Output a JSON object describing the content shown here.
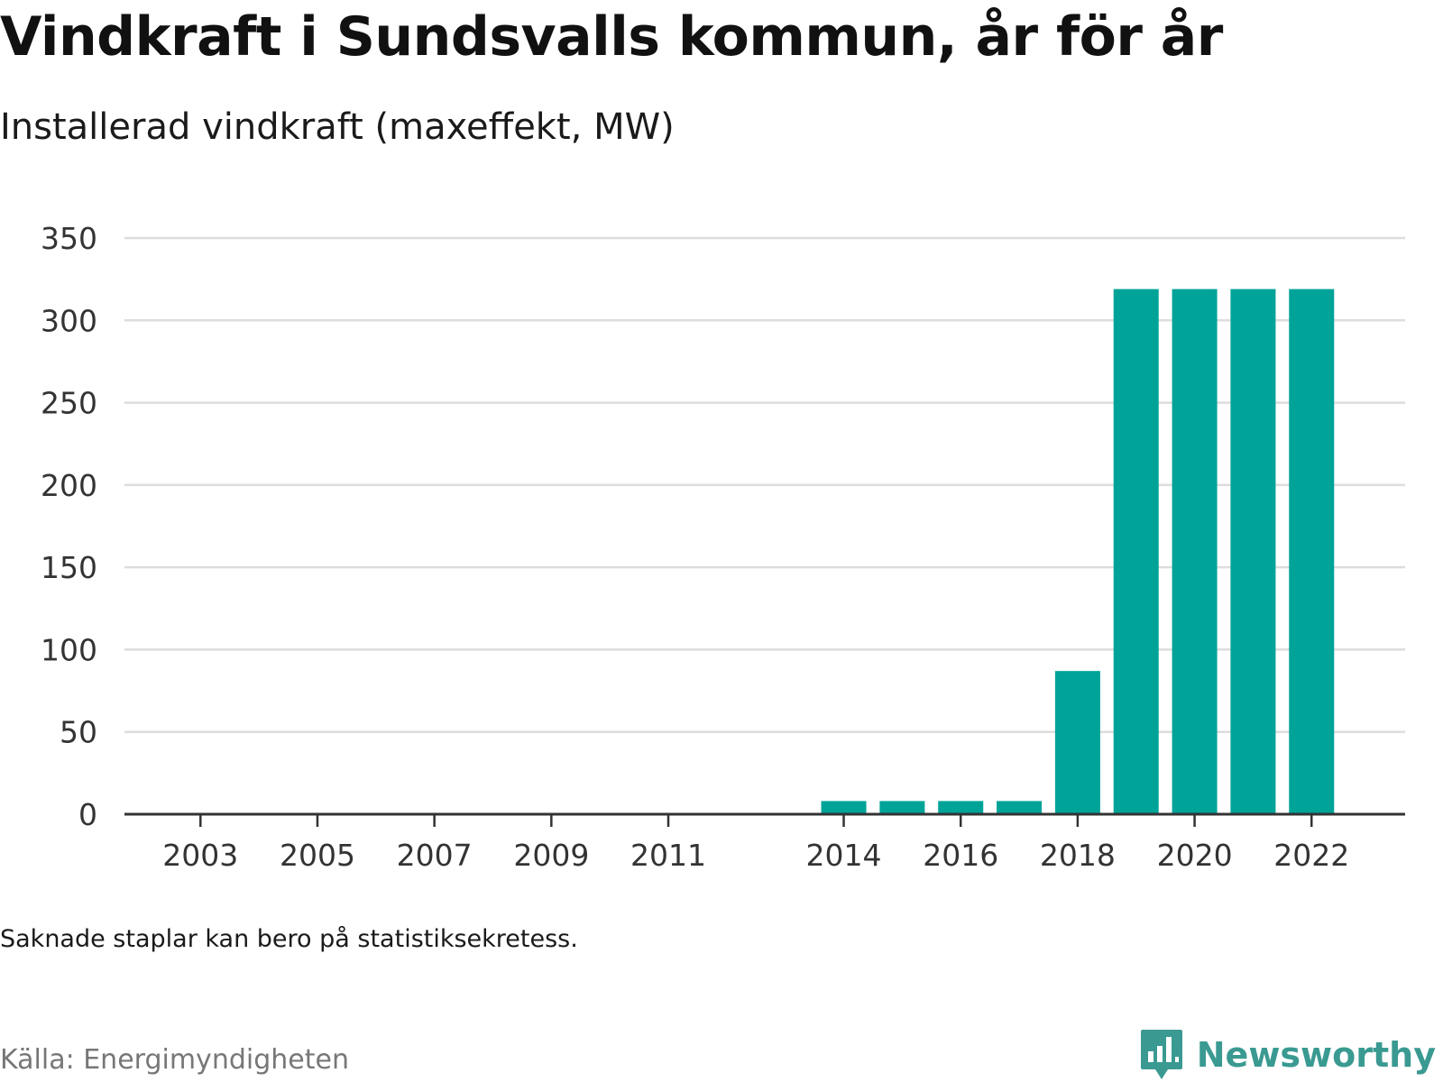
{
  "header": {
    "title": "Vindkraft i Sundsvalls kommun, år för år",
    "subtitle": "Installerad vindkraft (maxeffekt, MW)"
  },
  "footer": {
    "note": "Saknade staplar kan bero på statistiksekretess.",
    "source": "Källa: Energimyndigheten",
    "brand": "Newsworthy"
  },
  "colors": {
    "bar": "#00a398",
    "grid": "#dddddd",
    "axis": "#333333",
    "brand": "#3a9a92"
  },
  "icons": {
    "brand_logo": "bar-chart-speech-bubble-icon"
  },
  "chart_data": {
    "type": "bar",
    "title": "Vindkraft i Sundsvalls kommun, år för år",
    "subtitle": "Installerad vindkraft (maxeffekt, MW)",
    "xlabel": "",
    "ylabel": "",
    "x_range": [
      2001.7,
      2023.6
    ],
    "ylim": [
      0,
      350
    ],
    "yticks": [
      0,
      50,
      100,
      150,
      200,
      250,
      300,
      350
    ],
    "xticks": [
      2003,
      2005,
      2007,
      2009,
      2011,
      2014,
      2016,
      2018,
      2020,
      2022
    ],
    "grid": true,
    "legend": "none",
    "categories": [
      2014,
      2015,
      2016,
      2017,
      2018,
      2019,
      2020,
      2021,
      2022
    ],
    "values": [
      8,
      8,
      8,
      8,
      87,
      319,
      319,
      319,
      319
    ]
  }
}
